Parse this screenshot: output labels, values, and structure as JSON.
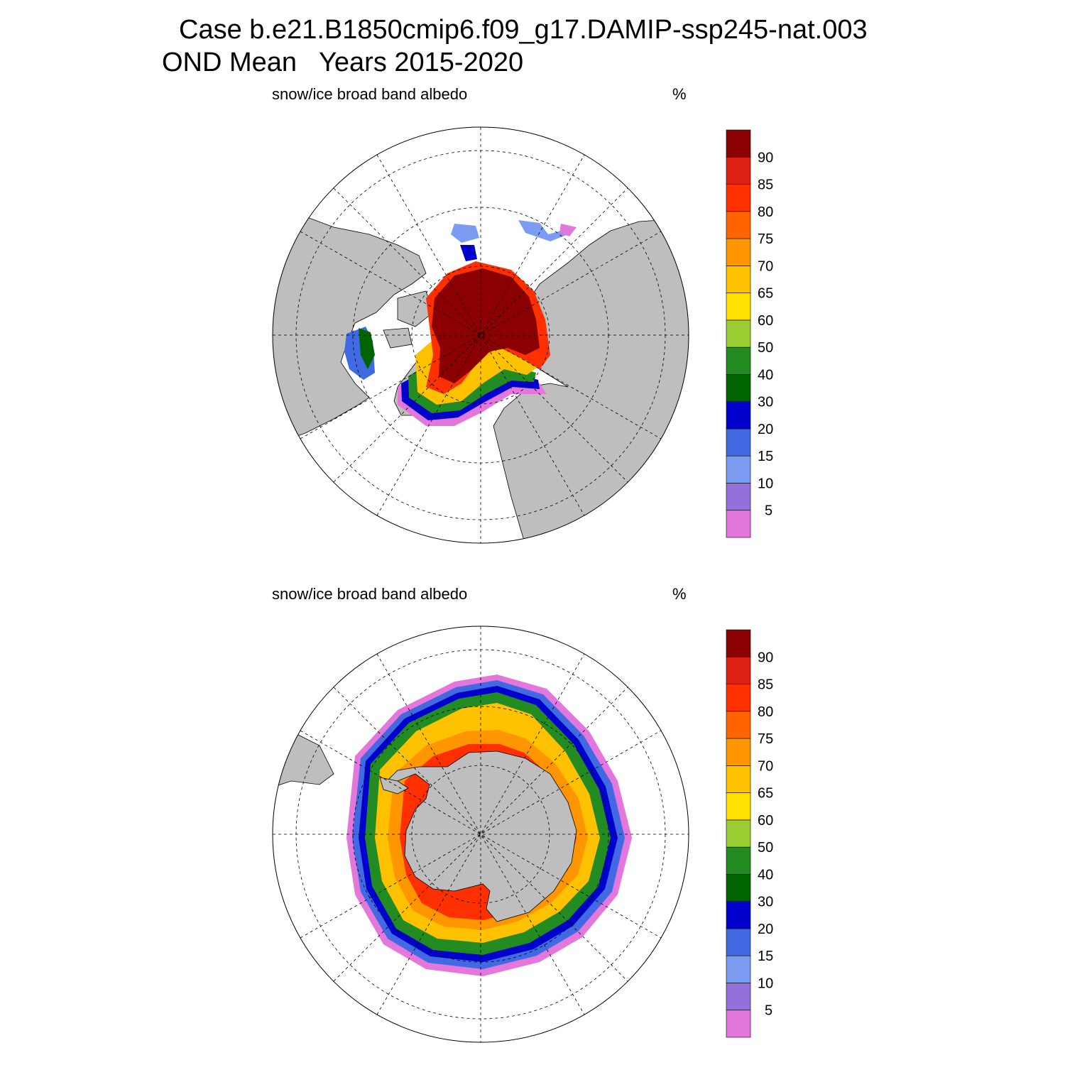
{
  "title_line1": "Case b.e21.B1850cmip6.f09_g17.DAMIP-ssp245-nat.003",
  "title_line2": "OND Mean   Years 2015-2020",
  "chart_data": [
    {
      "type": "heatmap",
      "projection": "north polar stereographic",
      "title": "snow/ice broad band albedo",
      "units": "%",
      "colorbar": {
        "levels": [
          5,
          10,
          15,
          20,
          30,
          40,
          50,
          60,
          65,
          70,
          75,
          80,
          85,
          90
        ],
        "colors": [
          "#e377db",
          "#9370db",
          "#7b9cf2",
          "#4169e1",
          "#0000cd",
          "#006400",
          "#228b22",
          "#9acd32",
          "#ffe000",
          "#ffc100",
          "#ff9600",
          "#ff6400",
          "#ff3000",
          "#dc2014",
          "#8b0000"
        ]
      },
      "grid": true
    },
    {
      "type": "heatmap",
      "projection": "south polar stereographic",
      "title": "snow/ice broad band albedo",
      "units": "%",
      "colorbar": {
        "levels": [
          5,
          10,
          15,
          20,
          30,
          40,
          50,
          60,
          65,
          70,
          75,
          80,
          85,
          90
        ],
        "colors": [
          "#e377db",
          "#9370db",
          "#7b9cf2",
          "#4169e1",
          "#0000cd",
          "#006400",
          "#228b22",
          "#9acd32",
          "#ffe000",
          "#ffc100",
          "#ff9600",
          "#ff6400",
          "#ff3000",
          "#dc2014",
          "#8b0000"
        ]
      },
      "grid": true
    }
  ]
}
